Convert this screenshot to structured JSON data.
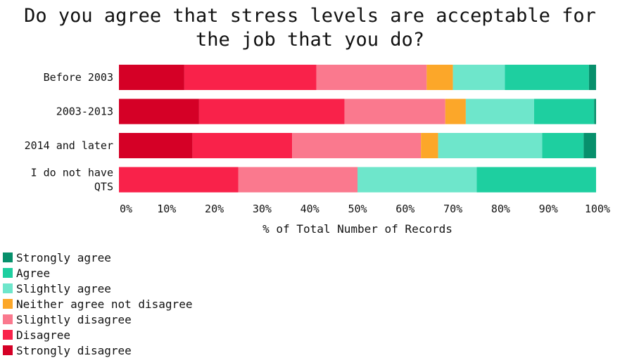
{
  "chart_data": {
    "type": "bar",
    "orientation": "horizontal",
    "stacked": true,
    "title": "Do you agree that stress levels are acceptable for the job that you do?",
    "title_lines": [
      "Do you agree that stress levels are acceptable for",
      "the job that you do?"
    ],
    "xlabel": "% of Total Number of Records",
    "ylabel": "",
    "xlim": [
      0,
      100
    ],
    "xticks": [
      "0%",
      "10%",
      "20%",
      "30%",
      "40%",
      "50%",
      "60%",
      "70%",
      "80%",
      "90%",
      "100%"
    ],
    "grid": false,
    "legend_position": "bottom-left",
    "categories": [
      "Before 2003",
      "2003-2013",
      "2014 and later",
      "I do not have QTS"
    ],
    "series": [
      {
        "name": "Strongly disagree",
        "color": "#d50026",
        "values": [
          13.7,
          16.8,
          15.4,
          0
        ]
      },
      {
        "name": "Disagree",
        "color": "#f9224a",
        "values": [
          27.7,
          30.5,
          20.9,
          25
        ]
      },
      {
        "name": "Slightly disagree",
        "color": "#fa798e",
        "values": [
          23.1,
          21.1,
          27.0,
          25
        ]
      },
      {
        "name": "Neither agree not disagree",
        "color": "#fca729",
        "values": [
          5.5,
          4.3,
          3.6,
          0
        ]
      },
      {
        "name": "Slightly agree",
        "color": "#6ee6cb",
        "values": [
          10.9,
          14.3,
          21.8,
          25
        ]
      },
      {
        "name": "Agree",
        "color": "#1ecfa0",
        "values": [
          17.6,
          12.6,
          8.7,
          25
        ]
      },
      {
        "name": "Strongly agree",
        "color": "#07906c",
        "values": [
          1.5,
          0.4,
          2.6,
          0
        ]
      }
    ],
    "legend_order": [
      "Strongly agree",
      "Agree",
      "Slightly agree",
      "Neither agree not disagree",
      "Slightly disagree",
      "Disagree",
      "Strongly disagree"
    ]
  }
}
